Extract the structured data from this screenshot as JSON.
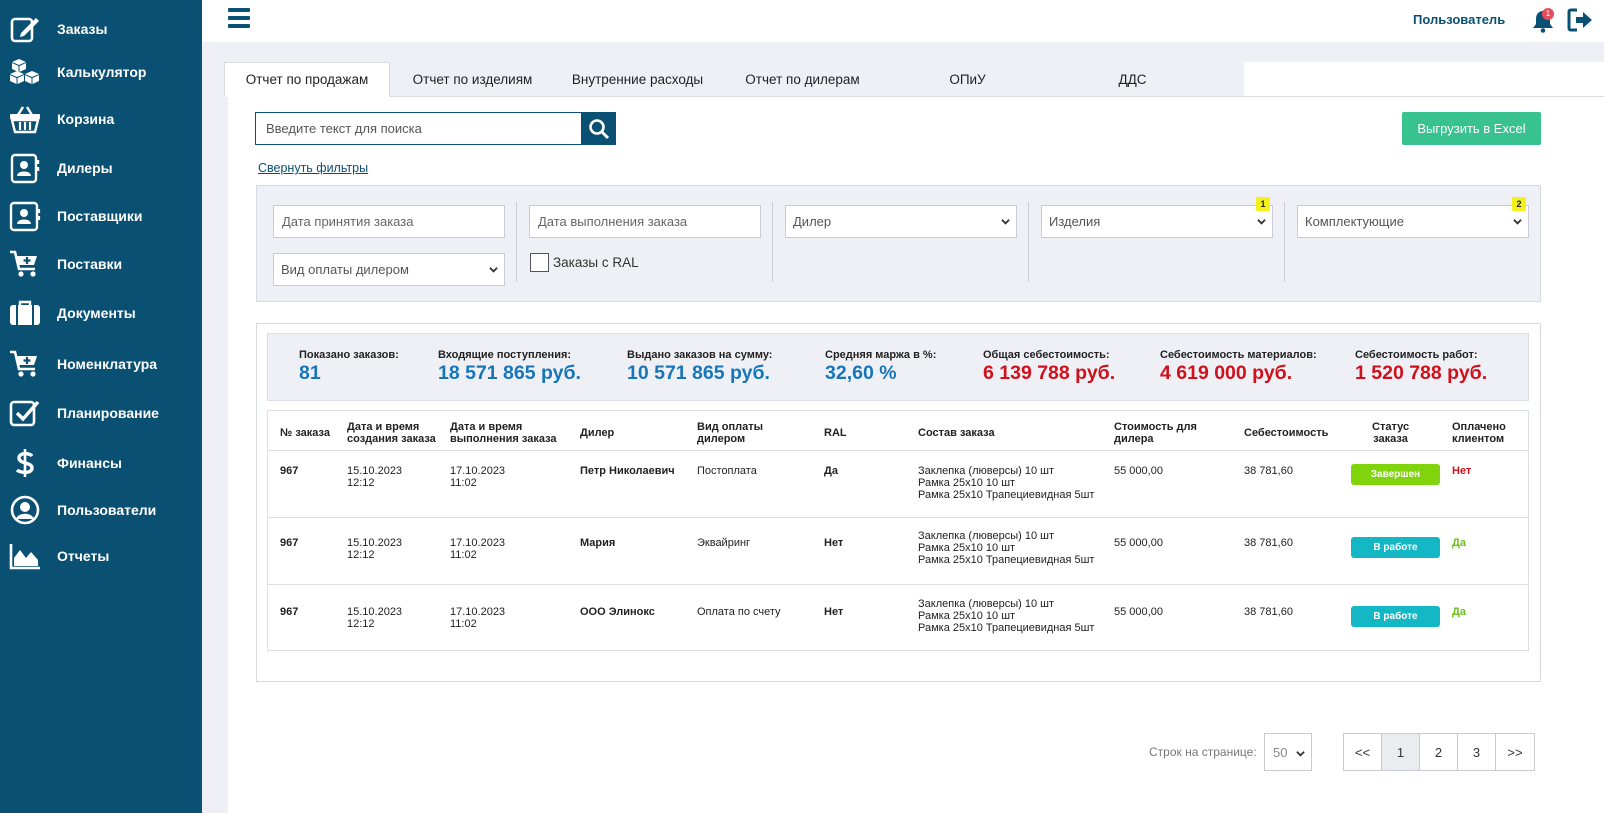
{
  "sidebar": {
    "items": [
      {
        "label": "Заказы",
        "icon": "edit-icon"
      },
      {
        "label": "Калькулятор",
        "icon": "boxes-icon"
      },
      {
        "label": "Корзина",
        "icon": "basket-icon"
      },
      {
        "label": "Дилеры",
        "icon": "contact-card-icon"
      },
      {
        "label": "Поставщики",
        "icon": "id-card-icon"
      },
      {
        "label": "Поставки",
        "icon": "cart-plus-icon"
      },
      {
        "label": "Документы",
        "icon": "briefcase-icon"
      },
      {
        "label": "Номенклатура",
        "icon": "cart-plus-icon"
      },
      {
        "label": "Планирование",
        "icon": "checkbox-icon"
      },
      {
        "label": "Финансы",
        "icon": "dollar-icon"
      },
      {
        "label": "Пользователи",
        "icon": "user-circle-icon"
      },
      {
        "label": "Отчеты",
        "icon": "area-chart-icon"
      }
    ]
  },
  "header": {
    "user_label": "Пользователь",
    "notification_count": "1"
  },
  "tabs": [
    {
      "label": "Отчет по продажам",
      "active": true
    },
    {
      "label": "Отчет по изделиям",
      "active": false
    },
    {
      "label": "Внутренние расходы",
      "active": false
    },
    {
      "label": "Отчет по дилерам",
      "active": false
    },
    {
      "label": "ОПиУ",
      "active": false
    },
    {
      "label": "ДДС",
      "active": false
    }
  ],
  "search": {
    "placeholder": "Введите текст для поиска"
  },
  "export_label": "Выгрузить в Excel",
  "collapse_filters_label": "Свернуть фильтры",
  "filters": {
    "order_date": "Дата принятия заказа",
    "payment_type": "Вид оплаты дилером",
    "completion_date": "Дата выполнения заказа",
    "ral_checkbox": "Заказы с RAL",
    "dealer": "Дилер",
    "products": "Изделия",
    "products_badge": "1",
    "components": "Комплектующие",
    "components_badge": "2"
  },
  "stats": [
    {
      "title": "Показано заказов:",
      "value": "81",
      "color": "#1776b9"
    },
    {
      "title": "Входящие поступления:",
      "value": "18 571 865 руб.",
      "color": "#1776b9"
    },
    {
      "title": "Выдано заказов на сумму:",
      "value": "10 571 865 руб.",
      "color": "#1776b9"
    },
    {
      "title": "Средняя маржа в %:",
      "value": "32,60 %",
      "color": "#1776b9"
    },
    {
      "title": "Общая себестоимость:",
      "value": "6 139 788 руб.",
      "color": "#d0101b"
    },
    {
      "title": "Себестоимость материалов:",
      "value": "4 619 000 руб.",
      "color": "#d0101b"
    },
    {
      "title": "Себестоимость работ:",
      "value": "1 520 788 руб.",
      "color": "#d0101b"
    }
  ],
  "table": {
    "headers": {
      "order_no": "№ заказа",
      "created_1": "Дата и время",
      "created_2": "создания заказа",
      "done_1": "Дата  и время",
      "done_2": "выполнения заказа",
      "dealer": "Дилер",
      "payment_1": "Вид оплаты",
      "payment_2": "дилером",
      "ral": "RAL",
      "composition": "Состав заказа",
      "dealer_price_1": "Стоимость для",
      "dealer_price_2": "дилера",
      "cost": "Себестоимость",
      "status_1": "Статус",
      "status_2": "заказа",
      "paid_1": "Оплачено",
      "paid_2": "клиентом"
    },
    "rows": [
      {
        "order_no": "967",
        "created_date": "15.10.2023",
        "created_time": "12:12",
        "done_date": "17.10.2023",
        "done_time": "11:02",
        "dealer": "Петр Николаевич",
        "payment": "Постоплата",
        "ral": "Да",
        "comp_1": "Заклепка (люверсы) 10 шт",
        "comp_2": "Рамка 25х10 10 шт",
        "comp_3": "Рамка 25х10 Трапециевидная 5шт",
        "dealer_price": "55 000,00",
        "cost": "38 781,60",
        "status": "Завершен",
        "status_color": "#7fd40b",
        "paid": "Нет",
        "paid_color": "#d0101b"
      },
      {
        "order_no": "967",
        "created_date": "15.10.2023",
        "created_time": "12:12",
        "done_date": "17.10.2023",
        "done_time": "11:02",
        "dealer": "Мария",
        "payment": "Эквайринг",
        "ral": "Нет",
        "comp_1": "Заклепка (люверсы) 10 шт",
        "comp_2": "Рамка 25х10 10 шт",
        "comp_3": "Рамка 25х10 Трапециевидная 5шт",
        "dealer_price": "55 000,00",
        "cost": "38 781,60",
        "status": "В работе",
        "status_color": "#14b8c4",
        "paid": "Да",
        "paid_color": "#6cbf17"
      },
      {
        "order_no": "967",
        "created_date": "15.10.2023",
        "created_time": "12:12",
        "done_date": "17.10.2023",
        "done_time": "11:02",
        "dealer": "ООО Элинокс",
        "payment": "Оплата по счету",
        "ral": "Нет",
        "comp_1": "Заклепка (люверсы) 10 шт",
        "comp_2": "Рамка 25х10 10 шт",
        "comp_3": "Рамка 25х10 Трапециевидная 5шт",
        "dealer_price": "55 000,00",
        "cost": "38 781,60",
        "status": "В работе",
        "status_color": "#14b8c4",
        "paid": "Да",
        "paid_color": "#6cbf17"
      }
    ]
  },
  "pagination": {
    "rows_label": "Строк на странице:",
    "rows_value": "50",
    "pages": [
      "<<",
      "1",
      "2",
      "3",
      ">>"
    ],
    "current": "1"
  }
}
